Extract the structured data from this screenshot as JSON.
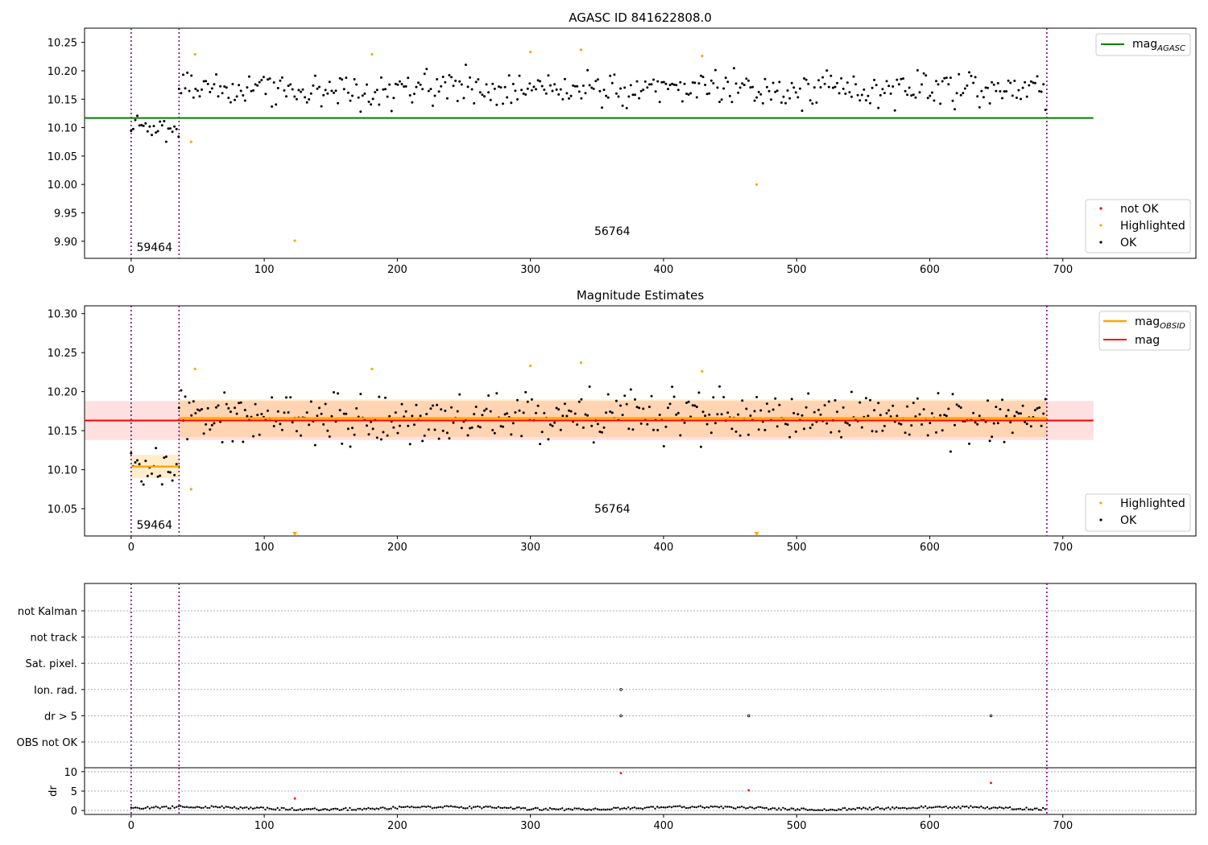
{
  "figure": {
    "title": "AGASC ID 841622808.0",
    "x_ticks": [
      0,
      100,
      200,
      300,
      400,
      500,
      600,
      700
    ],
    "xlim": [
      -35,
      800
    ],
    "obs_boundaries": [
      0,
      36,
      688
    ],
    "boundary_color": "#800080",
    "obs_labels": [
      {
        "text": "59464",
        "x": 4
      },
      {
        "text": "56764",
        "x": 348
      }
    ]
  },
  "chart_data": [
    {
      "type": "scatter",
      "title": "AGASC ID 841622808.0",
      "ylim": [
        9.87,
        10.275
      ],
      "y_ticks": [
        "9.90",
        "9.95",
        "10.00",
        "10.05",
        "10.10",
        "10.15",
        "10.20",
        "10.25"
      ],
      "mag_agasc": 10.117,
      "mag_agasc_color": "#008000",
      "series": [
        {
          "name": "not OK",
          "color": "#ff0000",
          "points": []
        },
        {
          "name": "Highlighted",
          "color": "#ffa500",
          "points": [
            [
              45,
              10.075
            ],
            [
              48,
              10.229
            ],
            [
              123,
              9.901
            ],
            [
              181,
              10.229
            ],
            [
              300,
              10.233
            ],
            [
              338,
              10.237
            ],
            [
              429,
              10.226
            ],
            [
              470,
              10.0
            ]
          ]
        },
        {
          "name": "OK",
          "color": "#000000",
          "points": []
        }
      ],
      "ok_segments": [
        {
          "x": [
            0,
            36
          ],
          "center": 10.103,
          "spread": 0.02
        },
        {
          "x": [
            36,
            688
          ],
          "center": 10.168,
          "spread": 0.026
        }
      ],
      "legend_top": [
        "mag_AGASC"
      ],
      "legend_bottom": [
        "not OK",
        "Highlighted",
        "OK"
      ]
    },
    {
      "type": "scatter",
      "title": "Magnitude Estimates",
      "ylim": [
        10.015,
        10.31
      ],
      "y_ticks": [
        "10.05",
        "10.10",
        "10.15",
        "10.20",
        "10.25",
        "10.30"
      ],
      "mag": 10.163,
      "mag_band": [
        10.138,
        10.188
      ],
      "mag_color": "#ff0000",
      "mag_obsid_color": "#ffa500",
      "mag_obsid": [
        {
          "x": [
            0,
            36
          ],
          "value": 10.104,
          "band": [
            10.089,
            10.119
          ]
        },
        {
          "x": [
            36,
            688
          ],
          "value": 10.166,
          "band": [
            10.142,
            10.19
          ]
        }
      ],
      "series": [
        {
          "name": "Highlighted",
          "color": "#ffa500",
          "points": [
            [
              45,
              10.075
            ],
            [
              48,
              10.229
            ],
            [
              181,
              10.229
            ],
            [
              300,
              10.233
            ],
            [
              338,
              10.237
            ],
            [
              429,
              10.226
            ]
          ]
        },
        {
          "name": "OK",
          "color": "#000000",
          "points": []
        }
      ],
      "off_scale_low": [
        123,
        470
      ],
      "legend_top": [
        "mag_OBSID",
        "mag"
      ],
      "legend_bottom": [
        "Highlighted",
        "OK"
      ]
    },
    {
      "type": "scatter",
      "title": "",
      "categories": [
        "not Kalman",
        "not track",
        "Sat. pixel.",
        "Ion. rad.",
        "dr > 5",
        "OBS not OK"
      ],
      "flags": [
        {
          "category": "Ion. rad.",
          "x": [
            368
          ]
        },
        {
          "category": "dr > 5",
          "x": [
            368,
            464,
            646
          ]
        }
      ]
    },
    {
      "type": "scatter",
      "title": "",
      "ylabel": "dr",
      "ylim": [
        -1,
        11
      ],
      "y_ticks": [
        "0",
        "5",
        "10"
      ],
      "series": [
        {
          "name": "dr",
          "color": "#000000",
          "baseline": 0.6
        },
        {
          "name": "dr > 5",
          "color": "#ff0000",
          "points": [
            [
              123,
              3.1
            ],
            [
              368,
              9.6
            ],
            [
              464,
              5.2
            ],
            [
              646,
              7.1
            ]
          ]
        }
      ]
    }
  ],
  "legend_labels": {
    "mag": "mag",
    "agasc_sub": "AGASC",
    "obsid_sub": "OBSID",
    "not_ok": "not OK",
    "highlighted": "Highlighted",
    "ok": "OK"
  }
}
